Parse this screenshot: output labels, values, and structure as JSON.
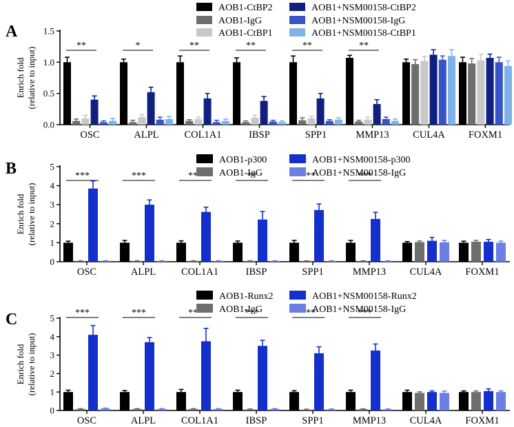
{
  "chart_data": [
    {
      "panel": "A",
      "type": "bar",
      "ylabel": "Enrich fold",
      "ylabel2": "(relative to input)",
      "ylim": [
        0,
        1.5
      ],
      "yticks": [
        "0.0",
        "0.5",
        "1.0",
        "1.5"
      ],
      "categories": [
        "OSC",
        "ALPL",
        "COL1A1",
        "IBSP",
        "SPP1",
        "MMP13",
        "CUL4A",
        "FOXM1"
      ],
      "series": [
        {
          "name": "AOB1-CtBP2",
          "color": "#000000",
          "values": [
            1.0,
            1.0,
            1.0,
            1.0,
            1.0,
            1.07,
            1.0,
            1.0
          ],
          "errors": [
            0.08,
            0.05,
            0.1,
            0.07,
            0.1,
            0.04,
            0.05,
            0.08
          ]
        },
        {
          "name": "AOB1-IgG",
          "color": "#6e6e6e",
          "values": [
            0.06,
            0.04,
            0.06,
            0.04,
            0.07,
            0.05,
            0.97,
            0.98
          ],
          "errors": [
            0.03,
            0.03,
            0.02,
            0.02,
            0.04,
            0.02,
            0.07,
            0.08
          ]
        },
        {
          "name": "AOB1-CtBP1",
          "color": "#c8c8c8",
          "values": [
            0.1,
            0.12,
            0.09,
            0.11,
            0.1,
            0.08,
            1.02,
            1.03
          ],
          "errors": [
            0.05,
            0.04,
            0.03,
            0.04,
            0.03,
            0.04,
            0.07,
            0.1
          ]
        },
        {
          "name": "AOB1+NSM00158-CtBP2",
          "color": "#10207e",
          "values": [
            0.4,
            0.52,
            0.42,
            0.38,
            0.42,
            0.33,
            1.12,
            1.07
          ],
          "errors": [
            0.06,
            0.08,
            0.08,
            0.07,
            0.08,
            0.07,
            0.08,
            0.06
          ]
        },
        {
          "name": "AOB1+NSM00158-IgG",
          "color": "#3954c4",
          "values": [
            0.04,
            0.08,
            0.04,
            0.05,
            0.06,
            0.09,
            1.04,
            1.0
          ],
          "errors": [
            0.02,
            0.04,
            0.03,
            0.02,
            0.02,
            0.03,
            0.06,
            0.08
          ]
        },
        {
          "name": "AOB1+NSM00158-CtBP1",
          "color": "#7fb2e6",
          "values": [
            0.06,
            0.09,
            0.06,
            0.04,
            0.08,
            0.06,
            1.1,
            0.94
          ],
          "errors": [
            0.04,
            0.04,
            0.03,
            0.02,
            0.03,
            0.03,
            0.1,
            0.08
          ]
        }
      ],
      "significance": [
        "**",
        "*",
        "**",
        "**",
        "**",
        "**",
        "",
        ""
      ]
    },
    {
      "panel": "B",
      "type": "bar",
      "ylabel": "Enrich fold",
      "ylabel2": "(relative to input)",
      "ylim": [
        0,
        5
      ],
      "yticks": [
        "0",
        "1",
        "2",
        "3",
        "4",
        "5"
      ],
      "categories": [
        "OSC",
        "ALPL",
        "COL1A1",
        "IBSP",
        "SPP1",
        "MMP13",
        "CUL4A",
        "FOXM1"
      ],
      "series": [
        {
          "name": "AOB1-p300",
          "color": "#000000",
          "values": [
            1.0,
            1.0,
            1.0,
            1.0,
            1.0,
            1.0,
            1.0,
            1.0
          ],
          "errors": [
            0.08,
            0.12,
            0.1,
            0.09,
            0.12,
            0.12,
            0.06,
            0.08
          ]
        },
        {
          "name": "AOB1-IgG",
          "color": "#6e6e6e",
          "values": [
            0.04,
            0.04,
            0.04,
            0.04,
            0.04,
            0.04,
            1.03,
            1.05
          ],
          "errors": [
            0.01,
            0.01,
            0.01,
            0.01,
            0.01,
            0.01,
            0.06,
            0.07
          ]
        },
        {
          "name": "AOB1+NSM00158-p300",
          "color": "#1330cc",
          "values": [
            3.85,
            3.0,
            2.62,
            2.22,
            2.72,
            2.25,
            1.1,
            1.05
          ],
          "errors": [
            0.4,
            0.25,
            0.25,
            0.42,
            0.32,
            0.35,
            0.18,
            0.12
          ]
        },
        {
          "name": "AOB1+NSM00158-IgG",
          "color": "#6b7ee3",
          "values": [
            0.04,
            0.04,
            0.04,
            0.04,
            0.04,
            0.04,
            1.02,
            1.0
          ],
          "errors": [
            0.01,
            0.01,
            0.01,
            0.01,
            0.01,
            0.01,
            0.1,
            0.08
          ]
        }
      ],
      "significance": [
        "***",
        "***",
        "***",
        "**",
        "***",
        "***",
        "",
        ""
      ]
    },
    {
      "panel": "C",
      "type": "bar",
      "ylabel": "Enrich fold",
      "ylabel2": "(relative to input)",
      "ylim": [
        0,
        5
      ],
      "yticks": [
        "0",
        "1",
        "2",
        "3",
        "4",
        "5"
      ],
      "categories": [
        "OSC",
        "ALPL",
        "COL1A1",
        "IBSP",
        "SPP1",
        "MMP13",
        "CUL4A",
        "FOXM1"
      ],
      "series": [
        {
          "name": "AOB1-Runx2",
          "color": "#000000",
          "values": [
            1.0,
            1.0,
            1.0,
            1.0,
            1.0,
            1.0,
            1.0,
            1.0
          ],
          "errors": [
            0.1,
            0.08,
            0.14,
            0.1,
            0.07,
            0.1,
            0.1,
            0.06
          ]
        },
        {
          "name": "AOB1-IgG",
          "color": "#6e6e6e",
          "values": [
            0.08,
            0.08,
            0.08,
            0.06,
            0.05,
            0.07,
            0.95,
            1.0
          ],
          "errors": [
            0.02,
            0.02,
            0.02,
            0.02,
            0.02,
            0.02,
            0.06,
            0.06
          ]
        },
        {
          "name": "AOB1+NSM00158-Runx2",
          "color": "#1330cc",
          "values": [
            4.1,
            3.7,
            3.75,
            3.5,
            3.1,
            3.25,
            1.0,
            1.05
          ],
          "errors": [
            0.5,
            0.25,
            0.7,
            0.3,
            0.35,
            0.35,
            0.06,
            0.12
          ]
        },
        {
          "name": "AOB1+NSM00158-IgG",
          "color": "#6b7ee3",
          "values": [
            0.1,
            0.08,
            0.08,
            0.08,
            0.06,
            0.06,
            0.95,
            1.0
          ],
          "errors": [
            0.03,
            0.02,
            0.02,
            0.02,
            0.02,
            0.02,
            0.1,
            0.06
          ]
        }
      ],
      "significance": [
        "***",
        "***",
        "***",
        "***",
        "***",
        "***",
        "",
        ""
      ]
    }
  ]
}
